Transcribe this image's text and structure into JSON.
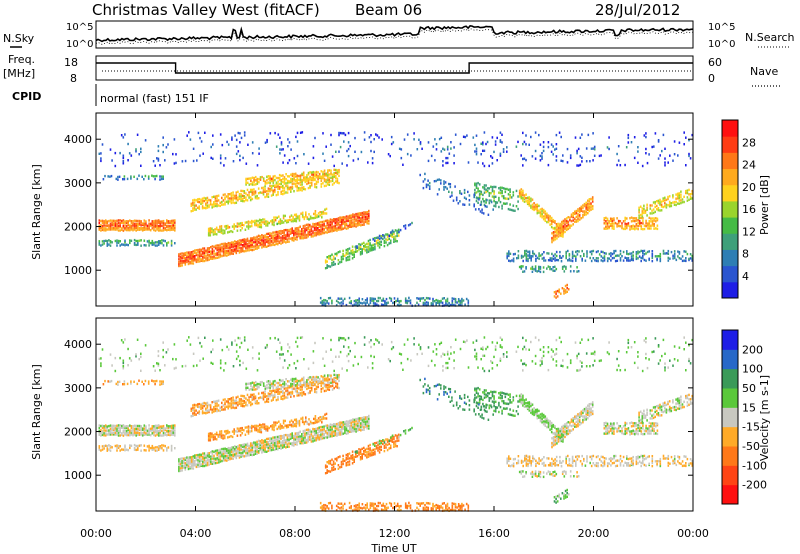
{
  "header": {
    "station": "Christmas Valley West (fitACF)",
    "beam": "Beam 06",
    "date": "28/Jul/2012"
  },
  "panels": {
    "nsky": {
      "label": "N.Sky",
      "right_label": "N.Search",
      "ticks": [
        "10^5",
        "10^0"
      ]
    },
    "freq": {
      "label_line1": "Freq.",
      "label_line2": "[MHz]",
      "right_label": "Nave",
      "left_ticks": [
        "18",
        "8"
      ],
      "right_ticks": [
        "60",
        "0"
      ]
    },
    "cpid": {
      "label": "CPID",
      "mode": "normal (fast) 151 IF"
    }
  },
  "chart_data": [
    {
      "type": "heatmap",
      "title": "Power",
      "x": {
        "label": "Time UT",
        "ticks": [
          "00:00",
          "04:00",
          "08:00",
          "12:00",
          "16:00",
          "20:00",
          "00:00"
        ],
        "range_hours": [
          0,
          24
        ]
      },
      "y": {
        "label": "Slant Range [km]",
        "ticks": [
          1000,
          2000,
          3000,
          4000
        ],
        "range": [
          180,
          4600
        ]
      },
      "colorbar": {
        "label": "Power [dB]",
        "ticks": [
          4,
          8,
          12,
          16,
          20,
          24,
          28
        ],
        "range": [
          0,
          32
        ],
        "colors": [
          "#1e1ee6",
          "#2a55d0",
          "#2e7eb4",
          "#3ea07a",
          "#45bb45",
          "#9ad42c",
          "#ffd21e",
          "#ffaa1e",
          "#ff7818",
          "#ff3c14",
          "#ff1010"
        ]
      }
    },
    {
      "type": "heatmap",
      "title": "Velocity",
      "x": {
        "label": "Time UT",
        "ticks": [
          "00:00",
          "04:00",
          "08:00",
          "12:00",
          "16:00",
          "20:00",
          "00:00"
        ],
        "range_hours": [
          0,
          24
        ]
      },
      "y": {
        "label": "Slant Range [km]",
        "ticks": [
          1000,
          2000,
          3000,
          4000
        ],
        "range": [
          180,
          4600
        ]
      },
      "colorbar": {
        "label": "Velocity [m s-1]",
        "ticks": [
          "200",
          "100",
          "50",
          "15",
          "-15",
          "-50",
          "-100",
          "-200"
        ],
        "colors": [
          "#1e1ee6",
          "#2868c8",
          "#3a9a58",
          "#5ac83a",
          "#c8c8c0",
          "#ffaa28",
          "#ff7818",
          "#ff4414",
          "#ff1010"
        ]
      }
    }
  ],
  "xaxis_label": "Time UT"
}
